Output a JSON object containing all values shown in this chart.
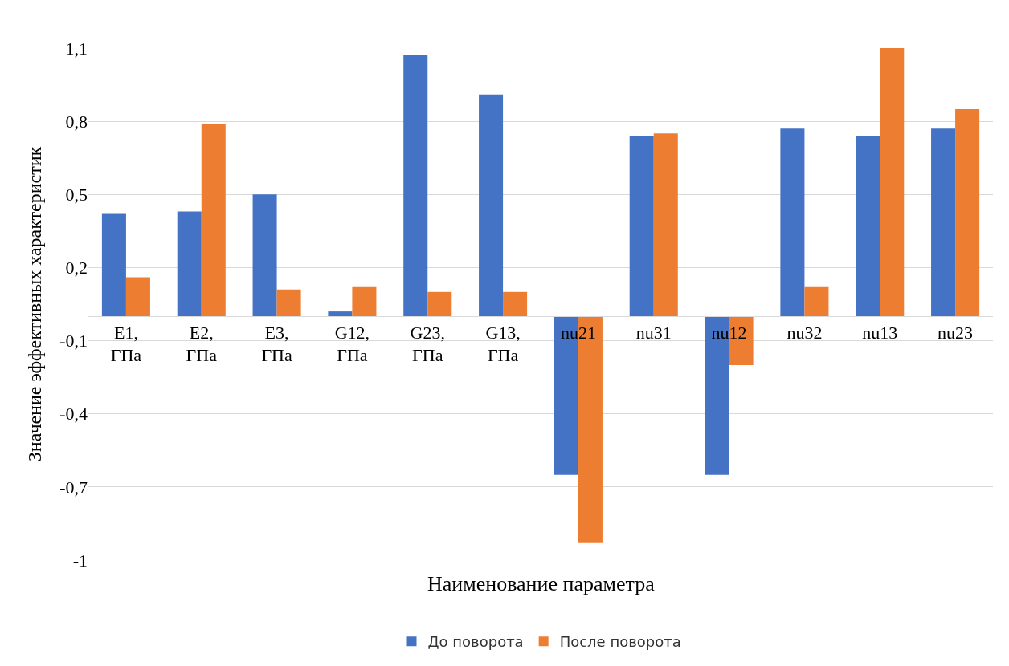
{
  "chart_data": {
    "type": "bar",
    "xlabel": "Наименование параметра",
    "ylabel": "Значение эффективных характеристик",
    "categories": [
      "E1, ГПа",
      "E2, ГПа",
      "E3, ГПа",
      "G12, ГПа",
      "G23, ГПа",
      "G13, ГПа",
      "nu21",
      "nu31",
      "nu12",
      "nu32",
      "nu13",
      "nu23"
    ],
    "series": [
      {
        "name": "До поворота",
        "color": "#4472c4",
        "values": [
          0.42,
          0.43,
          0.5,
          0.02,
          1.07,
          0.91,
          -0.65,
          0.74,
          -0.65,
          0.77,
          0.74,
          0.77
        ]
      },
      {
        "name": "После поворота",
        "color": "#ed7d31",
        "values": [
          0.16,
          0.79,
          0.11,
          0.12,
          0.1,
          0.1,
          -0.93,
          0.75,
          -0.2,
          0.12,
          1.1,
          0.85
        ]
      }
    ],
    "ylim": [
      -1,
      1.1
    ],
    "yticks": [
      -1,
      {
        "value": -0.7,
        "label": "-0,7"
      },
      {
        "value": -0.4,
        "label": "-0,4"
      },
      {
        "value": -0.1,
        "label": "-0,1"
      },
      {
        "value": 0.2,
        "label": "0,2"
      },
      {
        "value": 0.5,
        "label": "0,5"
      },
      {
        "value": 0.8,
        "label": "0,8"
      },
      {
        "value": 1.1,
        "label": "1,1"
      }
    ],
    "grid": "y",
    "legend": "bottom"
  }
}
